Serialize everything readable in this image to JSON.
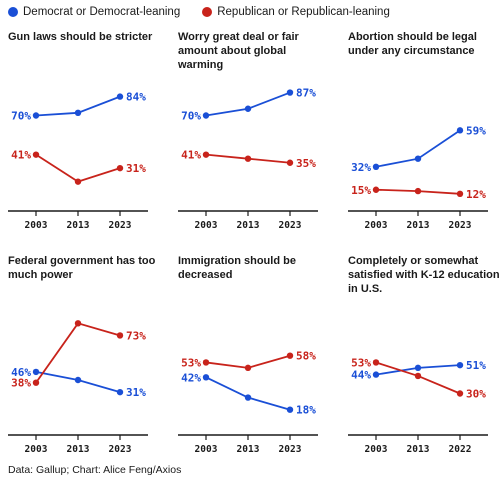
{
  "colors": {
    "democrat": "#1a4fd6",
    "republican": "#c8231b",
    "axis": "#1a1a1a"
  },
  "legend": [
    {
      "label": "Democrat or Democrat-leaning",
      "color": "#1a4fd6"
    },
    {
      "label": "Republican or Republican-leaning",
      "color": "#c8231b"
    }
  ],
  "footer": "Data: Gallup; Chart: Alice Feng/Axios",
  "chart_data": [
    {
      "type": "line",
      "title": "Gun laws should be stricter",
      "categories": [
        "2003",
        "2013",
        "2023"
      ],
      "ylim": [
        0,
        100
      ],
      "series": [
        {
          "name": "Democrat or Democrat-leaning",
          "values": [
            70,
            72,
            84
          ],
          "labels": [
            "70%",
            "",
            "84%"
          ]
        },
        {
          "name": "Republican or Republican-leaning",
          "values": [
            41,
            21,
            31
          ],
          "labels": [
            "41%",
            "",
            "31%"
          ]
        }
      ]
    },
    {
      "type": "line",
      "title": "Worry great deal or fair amount about global warming",
      "categories": [
        "2003",
        "2013",
        "2023"
      ],
      "ylim": [
        0,
        100
      ],
      "series": [
        {
          "name": "Democrat or Democrat-leaning",
          "values": [
            70,
            75,
            87
          ],
          "labels": [
            "70%",
            "",
            "87%"
          ]
        },
        {
          "name": "Republican or Republican-leaning",
          "values": [
            41,
            38,
            35
          ],
          "labels": [
            "41%",
            "",
            "35%"
          ]
        }
      ]
    },
    {
      "type": "line",
      "title": "Abortion should be legal under any circumstance",
      "categories": [
        "2003",
        "2013",
        "2023"
      ],
      "ylim": [
        0,
        100
      ],
      "series": [
        {
          "name": "Democrat or Democrat-leaning",
          "values": [
            32,
            38,
            59
          ],
          "labels": [
            "32%",
            "",
            "59%"
          ]
        },
        {
          "name": "Republican or Republican-leaning",
          "values": [
            15,
            14,
            12
          ],
          "labels": [
            "15%",
            "",
            "12%"
          ]
        }
      ]
    },
    {
      "type": "line",
      "title": "Federal government has too much power",
      "categories": [
        "2003",
        "2013",
        "2023"
      ],
      "ylim": [
        0,
        100
      ],
      "series": [
        {
          "name": "Democrat or Democrat-leaning",
          "values": [
            46,
            40,
            31
          ],
          "labels": [
            "46%",
            "",
            "31%"
          ]
        },
        {
          "name": "Republican or Republican-leaning",
          "values": [
            38,
            82,
            73
          ],
          "labels": [
            "38%",
            "",
            "73%"
          ]
        }
      ]
    },
    {
      "type": "line",
      "title": "Immigration should be decreased",
      "categories": [
        "2003",
        "2013",
        "2023"
      ],
      "ylim": [
        0,
        100
      ],
      "series": [
        {
          "name": "Democrat or Democrat-leaning",
          "values": [
            42,
            27,
            18
          ],
          "labels": [
            "42%",
            "",
            "18%"
          ]
        },
        {
          "name": "Republican or Republican-leaning",
          "values": [
            53,
            49,
            58
          ],
          "labels": [
            "53%",
            "",
            "58%"
          ]
        }
      ]
    },
    {
      "type": "line",
      "title": "Completely or somewhat satisfied with K-12 education in U.S.",
      "categories": [
        "2003",
        "2013",
        "2022"
      ],
      "ylim": [
        0,
        100
      ],
      "series": [
        {
          "name": "Democrat or Democrat-leaning",
          "values": [
            44,
            49,
            51
          ],
          "labels": [
            "44%",
            "",
            "51%"
          ]
        },
        {
          "name": "Republican or Republican-leaning",
          "values": [
            53,
            43,
            30
          ],
          "labels": [
            "53%",
            "",
            "30%"
          ]
        }
      ]
    }
  ]
}
